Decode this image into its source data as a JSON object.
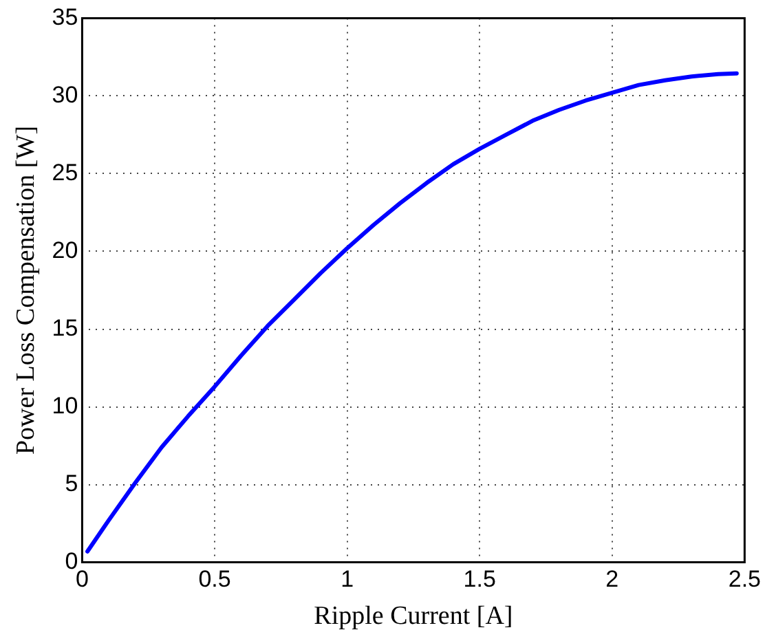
{
  "chart_data": {
    "type": "line",
    "xlabel": "Ripple Current [A]",
    "ylabel": "Power Loss Compensation [W]",
    "x": [
      0.02,
      0.1,
      0.2,
      0.3,
      0.4,
      0.5,
      0.6,
      0.7,
      0.8,
      0.9,
      1.0,
      1.1,
      1.2,
      1.3,
      1.4,
      1.5,
      1.6,
      1.7,
      1.8,
      1.9,
      2.0,
      2.1,
      2.2,
      2.3,
      2.4,
      2.47
    ],
    "series": [
      {
        "color": "#0000ff",
        "values": [
          0.7,
          2.7,
          5.1,
          7.4,
          9.4,
          11.3,
          13.3,
          15.2,
          16.9,
          18.6,
          20.2,
          21.7,
          23.1,
          24.4,
          25.6,
          26.6,
          27.5,
          28.4,
          29.1,
          29.7,
          30.2,
          30.7,
          31.0,
          31.25,
          31.4,
          31.45
        ]
      }
    ],
    "xlim": [
      0,
      2.5
    ],
    "xticks": [
      0,
      0.5,
      1,
      1.5,
      2,
      2.5
    ],
    "ylim": [
      0,
      35
    ],
    "yticks": [
      0,
      5,
      10,
      15,
      20,
      25,
      30,
      35
    ],
    "grid": true,
    "legend": false,
    "marker": "none",
    "line_style": "solid"
  }
}
